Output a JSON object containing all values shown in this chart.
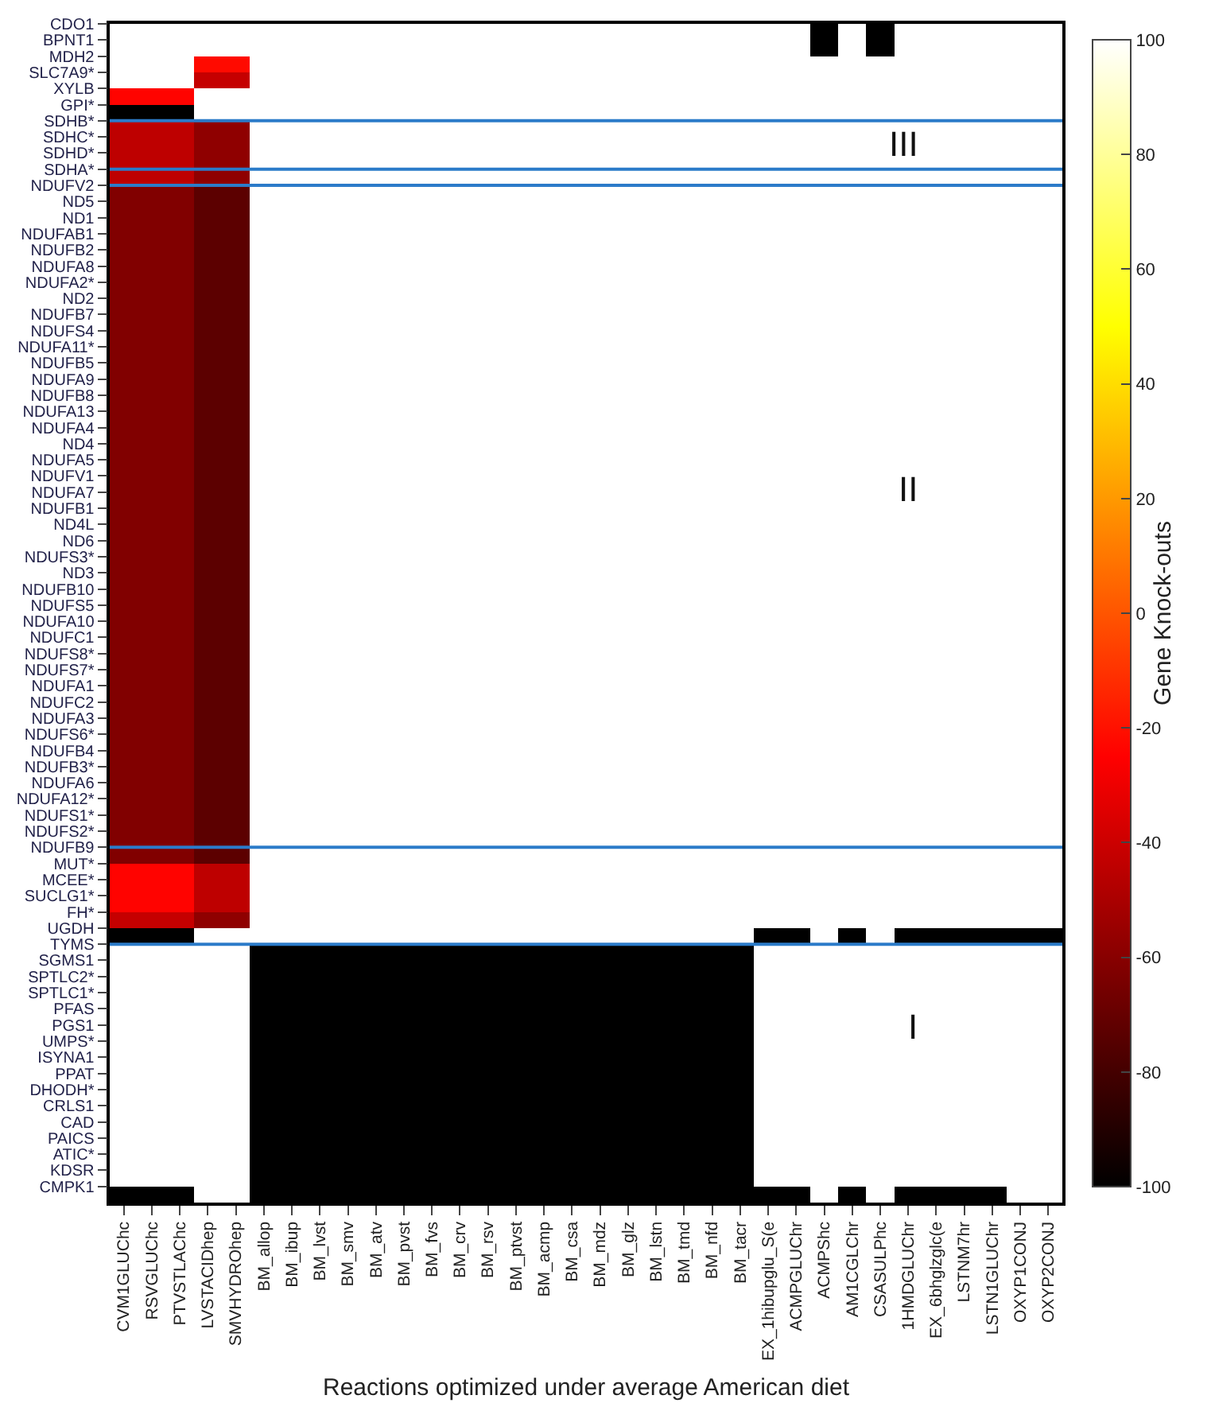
{
  "chart_data": {
    "type": "heatmap",
    "xlabel": "Reactions optimized under average American diet",
    "clabel": "Gene Knock-outs",
    "categories": [
      "CVM1GLUChc",
      "RSVGLUChc",
      "PTVSTLAChc",
      "LVSTACIDhep",
      "SMVHYDROhep",
      "BM_allop",
      "BM_ibup",
      "BM_lvst",
      "BM_smv",
      "BM_atv",
      "BM_pvst",
      "BM_fvs",
      "BM_crv",
      "BM_rsv",
      "BM_ptvst",
      "BM_acmp",
      "BM_csa",
      "BM_mdz",
      "BM_glz",
      "BM_lstn",
      "BM_tmd",
      "BM_nfd",
      "BM_tacr",
      "EX_1hibupglu_S(e",
      "ACMPGLUChr",
      "ACMPShc",
      "AM1CGLChr",
      "CSASULPhc",
      "1HMDGLUChr",
      "EX_6bhglzglc(e",
      "LSTNM7hr",
      "LSTN1GLUChr",
      "OXYP1CONJ",
      "OXYP2CONJ"
    ],
    "y_categories": [
      "CDO1",
      "BPNT1",
      "MDH2",
      "SLC7A9*",
      "XYLB",
      "GPI*",
      "SDHB*",
      "SDHC*",
      "SDHD*",
      "SDHA*",
      "NDUFV2",
      "ND5",
      "ND1",
      "NDUFAB1",
      "NDUFB2",
      "NDUFA8",
      "NDUFA2*",
      "ND2",
      "NDUFB7",
      "NDUFS4",
      "NDUFA11*",
      "NDUFB5",
      "NDUFA9",
      "NDUFB8",
      "NDUFA13",
      "NDUFA4",
      "ND4",
      "NDUFA5",
      "NDUFV1",
      "NDUFA7",
      "NDUFB1",
      "ND4L",
      "ND6",
      "NDUFS3*",
      "ND3",
      "NDUFB10",
      "NDUFS5",
      "NDUFA10",
      "NDUFC1",
      "NDUFS8*",
      "NDUFS7*",
      "NDUFA1",
      "NDUFC2",
      "NDUFA3",
      "NDUFS6*",
      "NDUFB4",
      "NDUFB3*",
      "NDUFA6",
      "NDUFA12*",
      "NDUFS1*",
      "NDUFS2*",
      "NDUFB9",
      "MUT*",
      "MCEE*",
      "SUCLG1*",
      "FH*",
      "UGDH",
      "TYMS",
      "SGMS1",
      "SPTLC2*",
      "SPTLC1*",
      "PFAS",
      "PGS1",
      "UMPS*",
      "ISYNA1",
      "PPAT",
      "DHODH*",
      "CRLS1",
      "CAD",
      "PAICS",
      "ATIC*",
      "KDSR",
      "CMPK1"
    ],
    "cells": [
      [
        null,
        null,
        null,
        null,
        null,
        null,
        null,
        null,
        null,
        null,
        null,
        null,
        null,
        null,
        null,
        null,
        null,
        null,
        null,
        null,
        null,
        null,
        null,
        null,
        null,
        -100,
        null,
        -100,
        null,
        null,
        null,
        null,
        null,
        null
      ],
      [
        null,
        null,
        null,
        null,
        null,
        null,
        null,
        null,
        null,
        null,
        null,
        null,
        null,
        null,
        null,
        null,
        null,
        null,
        null,
        null,
        null,
        null,
        null,
        null,
        null,
        -100,
        null,
        -100,
        null,
        null,
        null,
        null,
        null,
        null
      ],
      [
        null,
        null,
        null,
        -22,
        -22,
        null,
        null,
        null,
        null,
        null,
        null,
        null,
        null,
        null,
        null,
        null,
        null,
        null,
        null,
        null,
        null,
        null,
        null,
        null,
        null,
        null,
        null,
        null,
        null,
        null,
        null,
        null,
        null,
        null
      ],
      [
        null,
        null,
        null,
        -42,
        -42,
        null,
        null,
        null,
        null,
        null,
        null,
        null,
        null,
        null,
        null,
        null,
        null,
        null,
        null,
        null,
        null,
        null,
        null,
        null,
        null,
        null,
        null,
        null,
        null,
        null,
        null,
        null,
        null,
        null
      ],
      [
        -24,
        -24,
        -24,
        null,
        null,
        null,
        null,
        null,
        null,
        null,
        null,
        null,
        null,
        null,
        null,
        null,
        null,
        null,
        null,
        null,
        null,
        null,
        null,
        null,
        null,
        null,
        null,
        null,
        null,
        null,
        null,
        null,
        null,
        null
      ],
      [
        -100,
        -100,
        -100,
        null,
        null,
        null,
        null,
        null,
        null,
        null,
        null,
        null,
        null,
        null,
        null,
        null,
        null,
        null,
        null,
        null,
        null,
        null,
        null,
        null,
        null,
        null,
        null,
        null,
        null,
        null,
        null,
        null,
        null,
        null
      ],
      [
        -44,
        -44,
        -44,
        -58,
        -58,
        null,
        null,
        null,
        null,
        null,
        null,
        null,
        null,
        null,
        null,
        null,
        null,
        null,
        null,
        null,
        null,
        null,
        null,
        null,
        null,
        null,
        null,
        null,
        null,
        null,
        null,
        null,
        null,
        null
      ],
      [
        -44,
        -44,
        -44,
        -58,
        -58,
        null,
        null,
        null,
        null,
        null,
        null,
        null,
        null,
        null,
        null,
        null,
        null,
        null,
        null,
        null,
        null,
        null,
        null,
        null,
        null,
        null,
        null,
        null,
        null,
        null,
        null,
        null,
        null,
        null
      ],
      [
        -44,
        -44,
        -44,
        -58,
        -58,
        null,
        null,
        null,
        null,
        null,
        null,
        null,
        null,
        null,
        null,
        null,
        null,
        null,
        null,
        null,
        null,
        null,
        null,
        null,
        null,
        null,
        null,
        null,
        null,
        null,
        null,
        null,
        null,
        null
      ],
      [
        -44,
        -44,
        -44,
        -58,
        -58,
        null,
        null,
        null,
        null,
        null,
        null,
        null,
        null,
        null,
        null,
        null,
        null,
        null,
        null,
        null,
        null,
        null,
        null,
        null,
        null,
        null,
        null,
        null,
        null,
        null,
        null,
        null,
        null,
        null
      ],
      [
        -62,
        -62,
        -62,
        -73,
        -73,
        null,
        null,
        null,
        null,
        null,
        null,
        null,
        null,
        null,
        null,
        null,
        null,
        null,
        null,
        null,
        null,
        null,
        null,
        null,
        null,
        null,
        null,
        null,
        null,
        null,
        null,
        null,
        null,
        null
      ],
      [
        -62,
        -62,
        -62,
        -73,
        -73,
        null,
        null,
        null,
        null,
        null,
        null,
        null,
        null,
        null,
        null,
        null,
        null,
        null,
        null,
        null,
        null,
        null,
        null,
        null,
        null,
        null,
        null,
        null,
        null,
        null,
        null,
        null,
        null,
        null
      ],
      [
        -62,
        -62,
        -62,
        -73,
        -73,
        null,
        null,
        null,
        null,
        null,
        null,
        null,
        null,
        null,
        null,
        null,
        null,
        null,
        null,
        null,
        null,
        null,
        null,
        null,
        null,
        null,
        null,
        null,
        null,
        null,
        null,
        null,
        null,
        null
      ],
      [
        -62,
        -62,
        -62,
        -73,
        -73,
        null,
        null,
        null,
        null,
        null,
        null,
        null,
        null,
        null,
        null,
        null,
        null,
        null,
        null,
        null,
        null,
        null,
        null,
        null,
        null,
        null,
        null,
        null,
        null,
        null,
        null,
        null,
        null,
        null
      ],
      [
        -62,
        -62,
        -62,
        -73,
        -73,
        null,
        null,
        null,
        null,
        null,
        null,
        null,
        null,
        null,
        null,
        null,
        null,
        null,
        null,
        null,
        null,
        null,
        null,
        null,
        null,
        null,
        null,
        null,
        null,
        null,
        null,
        null,
        null,
        null
      ],
      [
        -62,
        -62,
        -62,
        -73,
        -73,
        null,
        null,
        null,
        null,
        null,
        null,
        null,
        null,
        null,
        null,
        null,
        null,
        null,
        null,
        null,
        null,
        null,
        null,
        null,
        null,
        null,
        null,
        null,
        null,
        null,
        null,
        null,
        null,
        null
      ],
      [
        -62,
        -62,
        -62,
        -73,
        -73,
        null,
        null,
        null,
        null,
        null,
        null,
        null,
        null,
        null,
        null,
        null,
        null,
        null,
        null,
        null,
        null,
        null,
        null,
        null,
        null,
        null,
        null,
        null,
        null,
        null,
        null,
        null,
        null,
        null
      ],
      [
        -62,
        -62,
        -62,
        -73,
        -73,
        null,
        null,
        null,
        null,
        null,
        null,
        null,
        null,
        null,
        null,
        null,
        null,
        null,
        null,
        null,
        null,
        null,
        null,
        null,
        null,
        null,
        null,
        null,
        null,
        null,
        null,
        null,
        null,
        null
      ],
      [
        -62,
        -62,
        -62,
        -73,
        -73,
        null,
        null,
        null,
        null,
        null,
        null,
        null,
        null,
        null,
        null,
        null,
        null,
        null,
        null,
        null,
        null,
        null,
        null,
        null,
        null,
        null,
        null,
        null,
        null,
        null,
        null,
        null,
        null,
        null
      ],
      [
        -62,
        -62,
        -62,
        -73,
        -73,
        null,
        null,
        null,
        null,
        null,
        null,
        null,
        null,
        null,
        null,
        null,
        null,
        null,
        null,
        null,
        null,
        null,
        null,
        null,
        null,
        null,
        null,
        null,
        null,
        null,
        null,
        null,
        null,
        null
      ],
      [
        -62,
        -62,
        -62,
        -73,
        -73,
        null,
        null,
        null,
        null,
        null,
        null,
        null,
        null,
        null,
        null,
        null,
        null,
        null,
        null,
        null,
        null,
        null,
        null,
        null,
        null,
        null,
        null,
        null,
        null,
        null,
        null,
        null,
        null,
        null
      ],
      [
        -62,
        -62,
        -62,
        -73,
        -73,
        null,
        null,
        null,
        null,
        null,
        null,
        null,
        null,
        null,
        null,
        null,
        null,
        null,
        null,
        null,
        null,
        null,
        null,
        null,
        null,
        null,
        null,
        null,
        null,
        null,
        null,
        null,
        null,
        null
      ],
      [
        -62,
        -62,
        -62,
        -73,
        -73,
        null,
        null,
        null,
        null,
        null,
        null,
        null,
        null,
        null,
        null,
        null,
        null,
        null,
        null,
        null,
        null,
        null,
        null,
        null,
        null,
        null,
        null,
        null,
        null,
        null,
        null,
        null,
        null,
        null
      ],
      [
        -62,
        -62,
        -62,
        -73,
        -73,
        null,
        null,
        null,
        null,
        null,
        null,
        null,
        null,
        null,
        null,
        null,
        null,
        null,
        null,
        null,
        null,
        null,
        null,
        null,
        null,
        null,
        null,
        null,
        null,
        null,
        null,
        null,
        null,
        null
      ],
      [
        -62,
        -62,
        -62,
        -73,
        -73,
        null,
        null,
        null,
        null,
        null,
        null,
        null,
        null,
        null,
        null,
        null,
        null,
        null,
        null,
        null,
        null,
        null,
        null,
        null,
        null,
        null,
        null,
        null,
        null,
        null,
        null,
        null,
        null,
        null
      ],
      [
        -62,
        -62,
        -62,
        -73,
        -73,
        null,
        null,
        null,
        null,
        null,
        null,
        null,
        null,
        null,
        null,
        null,
        null,
        null,
        null,
        null,
        null,
        null,
        null,
        null,
        null,
        null,
        null,
        null,
        null,
        null,
        null,
        null,
        null,
        null
      ],
      [
        -62,
        -62,
        -62,
        -73,
        -73,
        null,
        null,
        null,
        null,
        null,
        null,
        null,
        null,
        null,
        null,
        null,
        null,
        null,
        null,
        null,
        null,
        null,
        null,
        null,
        null,
        null,
        null,
        null,
        null,
        null,
        null,
        null,
        null,
        null
      ],
      [
        -62,
        -62,
        -62,
        -73,
        -73,
        null,
        null,
        null,
        null,
        null,
        null,
        null,
        null,
        null,
        null,
        null,
        null,
        null,
        null,
        null,
        null,
        null,
        null,
        null,
        null,
        null,
        null,
        null,
        null,
        null,
        null,
        null,
        null,
        null
      ],
      [
        -62,
        -62,
        -62,
        -73,
        -73,
        null,
        null,
        null,
        null,
        null,
        null,
        null,
        null,
        null,
        null,
        null,
        null,
        null,
        null,
        null,
        null,
        null,
        null,
        null,
        null,
        null,
        null,
        null,
        null,
        null,
        null,
        null,
        null,
        null
      ],
      [
        -62,
        -62,
        -62,
        -73,
        -73,
        null,
        null,
        null,
        null,
        null,
        null,
        null,
        null,
        null,
        null,
        null,
        null,
        null,
        null,
        null,
        null,
        null,
        null,
        null,
        null,
        null,
        null,
        null,
        null,
        null,
        null,
        null,
        null,
        null
      ],
      [
        -62,
        -62,
        -62,
        -73,
        -73,
        null,
        null,
        null,
        null,
        null,
        null,
        null,
        null,
        null,
        null,
        null,
        null,
        null,
        null,
        null,
        null,
        null,
        null,
        null,
        null,
        null,
        null,
        null,
        null,
        null,
        null,
        null,
        null,
        null
      ],
      [
        -62,
        -62,
        -62,
        -73,
        -73,
        null,
        null,
        null,
        null,
        null,
        null,
        null,
        null,
        null,
        null,
        null,
        null,
        null,
        null,
        null,
        null,
        null,
        null,
        null,
        null,
        null,
        null,
        null,
        null,
        null,
        null,
        null,
        null,
        null
      ],
      [
        -62,
        -62,
        -62,
        -73,
        -73,
        null,
        null,
        null,
        null,
        null,
        null,
        null,
        null,
        null,
        null,
        null,
        null,
        null,
        null,
        null,
        null,
        null,
        null,
        null,
        null,
        null,
        null,
        null,
        null,
        null,
        null,
        null,
        null,
        null
      ],
      [
        -62,
        -62,
        -62,
        -73,
        -73,
        null,
        null,
        null,
        null,
        null,
        null,
        null,
        null,
        null,
        null,
        null,
        null,
        null,
        null,
        null,
        null,
        null,
        null,
        null,
        null,
        null,
        null,
        null,
        null,
        null,
        null,
        null,
        null,
        null
      ],
      [
        -62,
        -62,
        -62,
        -73,
        -73,
        null,
        null,
        null,
        null,
        null,
        null,
        null,
        null,
        null,
        null,
        null,
        null,
        null,
        null,
        null,
        null,
        null,
        null,
        null,
        null,
        null,
        null,
        null,
        null,
        null,
        null,
        null,
        null,
        null
      ],
      [
        -62,
        -62,
        -62,
        -73,
        -73,
        null,
        null,
        null,
        null,
        null,
        null,
        null,
        null,
        null,
        null,
        null,
        null,
        null,
        null,
        null,
        null,
        null,
        null,
        null,
        null,
        null,
        null,
        null,
        null,
        null,
        null,
        null,
        null,
        null
      ],
      [
        -62,
        -62,
        -62,
        -73,
        -73,
        null,
        null,
        null,
        null,
        null,
        null,
        null,
        null,
        null,
        null,
        null,
        null,
        null,
        null,
        null,
        null,
        null,
        null,
        null,
        null,
        null,
        null,
        null,
        null,
        null,
        null,
        null,
        null,
        null
      ],
      [
        -62,
        -62,
        -62,
        -73,
        -73,
        null,
        null,
        null,
        null,
        null,
        null,
        null,
        null,
        null,
        null,
        null,
        null,
        null,
        null,
        null,
        null,
        null,
        null,
        null,
        null,
        null,
        null,
        null,
        null,
        null,
        null,
        null,
        null,
        null
      ],
      [
        -62,
        -62,
        -62,
        -73,
        -73,
        null,
        null,
        null,
        null,
        null,
        null,
        null,
        null,
        null,
        null,
        null,
        null,
        null,
        null,
        null,
        null,
        null,
        null,
        null,
        null,
        null,
        null,
        null,
        null,
        null,
        null,
        null,
        null,
        null
      ],
      [
        -62,
        -62,
        -62,
        -73,
        -73,
        null,
        null,
        null,
        null,
        null,
        null,
        null,
        null,
        null,
        null,
        null,
        null,
        null,
        null,
        null,
        null,
        null,
        null,
        null,
        null,
        null,
        null,
        null,
        null,
        null,
        null,
        null,
        null,
        null
      ],
      [
        -62,
        -62,
        -62,
        -73,
        -73,
        null,
        null,
        null,
        null,
        null,
        null,
        null,
        null,
        null,
        null,
        null,
        null,
        null,
        null,
        null,
        null,
        null,
        null,
        null,
        null,
        null,
        null,
        null,
        null,
        null,
        null,
        null,
        null,
        null
      ],
      [
        -62,
        -62,
        -62,
        -73,
        -73,
        null,
        null,
        null,
        null,
        null,
        null,
        null,
        null,
        null,
        null,
        null,
        null,
        null,
        null,
        null,
        null,
        null,
        null,
        null,
        null,
        null,
        null,
        null,
        null,
        null,
        null,
        null,
        null,
        null
      ],
      [
        -62,
        -62,
        -62,
        -73,
        -73,
        null,
        null,
        null,
        null,
        null,
        null,
        null,
        null,
        null,
        null,
        null,
        null,
        null,
        null,
        null,
        null,
        null,
        null,
        null,
        null,
        null,
        null,
        null,
        null,
        null,
        null,
        null,
        null,
        null
      ],
      [
        -62,
        -62,
        -62,
        -73,
        -73,
        null,
        null,
        null,
        null,
        null,
        null,
        null,
        null,
        null,
        null,
        null,
        null,
        null,
        null,
        null,
        null,
        null,
        null,
        null,
        null,
        null,
        null,
        null,
        null,
        null,
        null,
        null,
        null,
        null
      ],
      [
        -62,
        -62,
        -62,
        -73,
        -73,
        null,
        null,
        null,
        null,
        null,
        null,
        null,
        null,
        null,
        null,
        null,
        null,
        null,
        null,
        null,
        null,
        null,
        null,
        null,
        null,
        null,
        null,
        null,
        null,
        null,
        null,
        null,
        null,
        null
      ],
      [
        -62,
        -62,
        -62,
        -73,
        -73,
        null,
        null,
        null,
        null,
        null,
        null,
        null,
        null,
        null,
        null,
        null,
        null,
        null,
        null,
        null,
        null,
        null,
        null,
        null,
        null,
        null,
        null,
        null,
        null,
        null,
        null,
        null,
        null,
        null
      ],
      [
        -62,
        -62,
        -62,
        -73,
        -73,
        null,
        null,
        null,
        null,
        null,
        null,
        null,
        null,
        null,
        null,
        null,
        null,
        null,
        null,
        null,
        null,
        null,
        null,
        null,
        null,
        null,
        null,
        null,
        null,
        null,
        null,
        null,
        null,
        null
      ],
      [
        -62,
        -62,
        -62,
        -73,
        -73,
        null,
        null,
        null,
        null,
        null,
        null,
        null,
        null,
        null,
        null,
        null,
        null,
        null,
        null,
        null,
        null,
        null,
        null,
        null,
        null,
        null,
        null,
        null,
        null,
        null,
        null,
        null,
        null,
        null
      ],
      [
        -62,
        -62,
        -62,
        -73,
        -73,
        null,
        null,
        null,
        null,
        null,
        null,
        null,
        null,
        null,
        null,
        null,
        null,
        null,
        null,
        null,
        null,
        null,
        null,
        null,
        null,
        null,
        null,
        null,
        null,
        null,
        null,
        null,
        null,
        null
      ],
      [
        -62,
        -62,
        -62,
        -73,
        -73,
        null,
        null,
        null,
        null,
        null,
        null,
        null,
        null,
        null,
        null,
        null,
        null,
        null,
        null,
        null,
        null,
        null,
        null,
        null,
        null,
        null,
        null,
        null,
        null,
        null,
        null,
        null,
        null,
        null
      ],
      [
        -62,
        -62,
        -62,
        -73,
        -73,
        null,
        null,
        null,
        null,
        null,
        null,
        null,
        null,
        null,
        null,
        null,
        null,
        null,
        null,
        null,
        null,
        null,
        null,
        null,
        null,
        null,
        null,
        null,
        null,
        null,
        null,
        null,
        null,
        null
      ],
      [
        -62,
        -62,
        -62,
        -73,
        -73,
        null,
        null,
        null,
        null,
        null,
        null,
        null,
        null,
        null,
        null,
        null,
        null,
        null,
        null,
        null,
        null,
        null,
        null,
        null,
        null,
        null,
        null,
        null,
        null,
        null,
        null,
        null,
        null,
        null
      ],
      [
        -24,
        -24,
        -24,
        -44,
        -44,
        null,
        null,
        null,
        null,
        null,
        null,
        null,
        null,
        null,
        null,
        null,
        null,
        null,
        null,
        null,
        null,
        null,
        null,
        null,
        null,
        null,
        null,
        null,
        null,
        null,
        null,
        null,
        null,
        null
      ],
      [
        -24,
        -24,
        -24,
        -44,
        -44,
        null,
        null,
        null,
        null,
        null,
        null,
        null,
        null,
        null,
        null,
        null,
        null,
        null,
        null,
        null,
        null,
        null,
        null,
        null,
        null,
        null,
        null,
        null,
        null,
        null,
        null,
        null,
        null,
        null
      ],
      [
        -24,
        -24,
        -24,
        -44,
        -44,
        null,
        null,
        null,
        null,
        null,
        null,
        null,
        null,
        null,
        null,
        null,
        null,
        null,
        null,
        null,
        null,
        null,
        null,
        null,
        null,
        null,
        null,
        null,
        null,
        null,
        null,
        null,
        null,
        null
      ],
      [
        -42,
        -42,
        -42,
        -58,
        -58,
        null,
        null,
        null,
        null,
        null,
        null,
        null,
        null,
        null,
        null,
        null,
        null,
        null,
        null,
        null,
        null,
        null,
        null,
        null,
        null,
        null,
        null,
        null,
        null,
        null,
        null,
        null,
        null,
        null
      ],
      [
        -100,
        -100,
        -100,
        null,
        null,
        null,
        null,
        null,
        null,
        null,
        null,
        null,
        null,
        null,
        null,
        null,
        null,
        null,
        null,
        null,
        null,
        null,
        null,
        -100,
        -100,
        null,
        -100,
        null,
        -100,
        -100,
        -100,
        -100,
        -100,
        -100
      ],
      [
        null,
        null,
        null,
        null,
        null,
        -100,
        -100,
        -100,
        -100,
        -100,
        -100,
        -100,
        -100,
        -100,
        -100,
        -100,
        -100,
        -100,
        -100,
        -100,
        -100,
        -100,
        -100,
        null,
        null,
        null,
        null,
        null,
        null,
        null,
        null,
        null,
        null,
        null
      ],
      [
        null,
        null,
        null,
        null,
        null,
        -100,
        -100,
        -100,
        -100,
        -100,
        -100,
        -100,
        -100,
        -100,
        -100,
        -100,
        -100,
        -100,
        -100,
        -100,
        -100,
        -100,
        -100,
        null,
        null,
        null,
        null,
        null,
        null,
        null,
        null,
        null,
        null,
        null
      ],
      [
        null,
        null,
        null,
        null,
        null,
        -100,
        -100,
        -100,
        -100,
        -100,
        -100,
        -100,
        -100,
        -100,
        -100,
        -100,
        -100,
        -100,
        -100,
        -100,
        -100,
        -100,
        -100,
        null,
        null,
        null,
        null,
        null,
        null,
        null,
        null,
        null,
        null,
        null
      ],
      [
        null,
        null,
        null,
        null,
        null,
        -100,
        -100,
        -100,
        -100,
        -100,
        -100,
        -100,
        -100,
        -100,
        -100,
        -100,
        -100,
        -100,
        -100,
        -100,
        -100,
        -100,
        -100,
        null,
        null,
        null,
        null,
        null,
        null,
        null,
        null,
        null,
        null,
        null
      ],
      [
        null,
        null,
        null,
        null,
        null,
        -100,
        -100,
        -100,
        -100,
        -100,
        -100,
        -100,
        -100,
        -100,
        -100,
        -100,
        -100,
        -100,
        -100,
        -100,
        -100,
        -100,
        -100,
        null,
        null,
        null,
        null,
        null,
        null,
        null,
        null,
        null,
        null,
        null
      ],
      [
        null,
        null,
        null,
        null,
        null,
        -100,
        -100,
        -100,
        -100,
        -100,
        -100,
        -100,
        -100,
        -100,
        -100,
        -100,
        -100,
        -100,
        -100,
        -100,
        -100,
        -100,
        -100,
        null,
        null,
        null,
        null,
        null,
        null,
        null,
        null,
        null,
        null,
        null
      ],
      [
        null,
        null,
        null,
        null,
        null,
        -100,
        -100,
        -100,
        -100,
        -100,
        -100,
        -100,
        -100,
        -100,
        -100,
        -100,
        -100,
        -100,
        -100,
        -100,
        -100,
        -100,
        -100,
        null,
        null,
        null,
        null,
        null,
        null,
        null,
        null,
        null,
        null,
        null
      ],
      [
        null,
        null,
        null,
        null,
        null,
        -100,
        -100,
        -100,
        -100,
        -100,
        -100,
        -100,
        -100,
        -100,
        -100,
        -100,
        -100,
        -100,
        -100,
        -100,
        -100,
        -100,
        -100,
        null,
        null,
        null,
        null,
        null,
        null,
        null,
        null,
        null,
        null,
        null
      ],
      [
        null,
        null,
        null,
        null,
        null,
        -100,
        -100,
        -100,
        -100,
        -100,
        -100,
        -100,
        -100,
        -100,
        -100,
        -100,
        -100,
        -100,
        -100,
        -100,
        -100,
        -100,
        -100,
        null,
        null,
        null,
        null,
        null,
        null,
        null,
        null,
        null,
        null,
        null
      ],
      [
        null,
        null,
        null,
        null,
        null,
        -100,
        -100,
        -100,
        -100,
        -100,
        -100,
        -100,
        -100,
        -100,
        -100,
        -100,
        -100,
        -100,
        -100,
        -100,
        -100,
        -100,
        -100,
        null,
        null,
        null,
        null,
        null,
        null,
        null,
        null,
        null,
        null,
        null
      ],
      [
        null,
        null,
        null,
        null,
        null,
        -100,
        -100,
        -100,
        -100,
        -100,
        -100,
        -100,
        -100,
        -100,
        -100,
        -100,
        -100,
        -100,
        -100,
        -100,
        -100,
        -100,
        -100,
        null,
        null,
        null,
        null,
        null,
        null,
        null,
        null,
        null,
        null,
        null
      ],
      [
        null,
        null,
        null,
        null,
        null,
        -100,
        -100,
        -100,
        -100,
        -100,
        -100,
        -100,
        -100,
        -100,
        -100,
        -100,
        -100,
        -100,
        -100,
        -100,
        -100,
        -100,
        -100,
        null,
        null,
        null,
        null,
        null,
        null,
        null,
        null,
        null,
        null,
        null
      ],
      [
        null,
        null,
        null,
        null,
        null,
        -100,
        -100,
        -100,
        -100,
        -100,
        -100,
        -100,
        -100,
        -100,
        -100,
        -100,
        -100,
        -100,
        -100,
        -100,
        -100,
        -100,
        -100,
        null,
        null,
        null,
        null,
        null,
        null,
        null,
        null,
        null,
        null,
        null
      ],
      [
        null,
        null,
        null,
        null,
        null,
        -100,
        -100,
        -100,
        -100,
        -100,
        -100,
        -100,
        -100,
        -100,
        -100,
        -100,
        -100,
        -100,
        -100,
        -100,
        -100,
        -100,
        -100,
        null,
        null,
        null,
        null,
        null,
        null,
        null,
        null,
        null,
        null,
        null
      ],
      [
        null,
        null,
        null,
        null,
        null,
        -100,
        -100,
        -100,
        -100,
        -100,
        -100,
        -100,
        -100,
        -100,
        -100,
        -100,
        -100,
        -100,
        -100,
        -100,
        -100,
        -100,
        -100,
        null,
        null,
        null,
        null,
        null,
        null,
        null,
        null,
        null,
        null,
        null
      ],
      [
        -100,
        -100,
        -100,
        null,
        null,
        -100,
        -100,
        -100,
        -100,
        -100,
        -100,
        -100,
        -100,
        -100,
        -100,
        -100,
        -100,
        -100,
        -100,
        -100,
        -100,
        -100,
        -100,
        -100,
        -100,
        null,
        -100,
        null,
        -100,
        -100,
        -100,
        -100,
        null,
        null
      ]
    ],
    "clim": [
      -100,
      100
    ],
    "cticks": [
      -100,
      -80,
      -60,
      -40,
      -20,
      0,
      20,
      40,
      60,
      80,
      100
    ],
    "ref_lines": [
      {
        "axis": "y",
        "value": "SDHB*",
        "color": "#2b7bc9"
      },
      {
        "axis": "y",
        "value": "SDHA*",
        "color": "#2b7bc9"
      },
      {
        "axis": "y",
        "value": "NDUFV2",
        "color": "#2b7bc9"
      },
      {
        "axis": "y",
        "value": "NDUFB9",
        "color": "#2b7bc9"
      },
      {
        "axis": "y",
        "value": "TYMS",
        "color": "#2b7bc9"
      }
    ],
    "annotations": [
      "III",
      "II",
      "I"
    ]
  }
}
